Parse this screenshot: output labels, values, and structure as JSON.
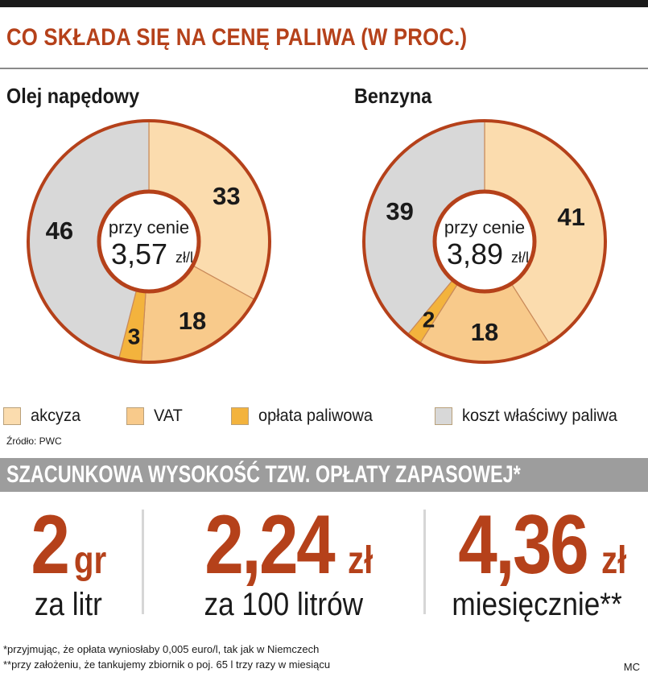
{
  "title": "CO SKŁADA SIĘ NA CENĘ PALIWA (W PROC.)",
  "chart_data": [
    {
      "type": "pie",
      "title": "Olej napędowy",
      "center_line1": "przy cenie",
      "center_value": "3,57",
      "center_unit": "zł/l",
      "labels": [
        "akcyza",
        "VAT",
        "opłata paliwowa",
        "koszt właściwy paliwa"
      ],
      "values": [
        33,
        18,
        3,
        46
      ],
      "value_labels": [
        "33",
        "18",
        "3",
        "46"
      ]
    },
    {
      "type": "pie",
      "title": "Benzyna",
      "center_line1": "przy cenie",
      "center_value": "3,89",
      "center_unit": "zł/l",
      "labels": [
        "akcyza",
        "VAT",
        "opłata paliwowa",
        "koszt właściwy paliwa"
      ],
      "values": [
        41,
        18,
        2,
        39
      ],
      "value_labels": [
        "41",
        "18",
        "2",
        "39"
      ]
    }
  ],
  "legend": [
    {
      "label": "akcyza",
      "color": "#fbdcae"
    },
    {
      "label": "VAT",
      "color": "#f8ca8b"
    },
    {
      "label": "opłata paliwowa",
      "color": "#f3b33d"
    },
    {
      "label": "koszt właściwy paliwa",
      "color": "#d8d8d8"
    }
  ],
  "colors": {
    "ring": "#b5411a",
    "accent": "#b5411a",
    "divider_line": "#c98a5a"
  },
  "source": "Źródło: PWC",
  "banner": "SZACUNKOWA WYSOKOŚĆ TZW. OPŁATY ZAPASOWEJ*",
  "stats": [
    {
      "value": "2",
      "unit": "gr",
      "caption": "za litr"
    },
    {
      "value": "2,24",
      "unit": "zł",
      "caption": "za 100 litrów"
    },
    {
      "value": "4,36",
      "unit": "zł",
      "caption": "miesięcznie**"
    }
  ],
  "footnotes": [
    "*przyjmując, że opłata wyniosłaby 0,005 euro/l, tak jak w Niemczech",
    "**przy założeniu, że tankujemy zbiornik o poj. 65 l trzy razy w miesiącu"
  ],
  "credit": "MC"
}
